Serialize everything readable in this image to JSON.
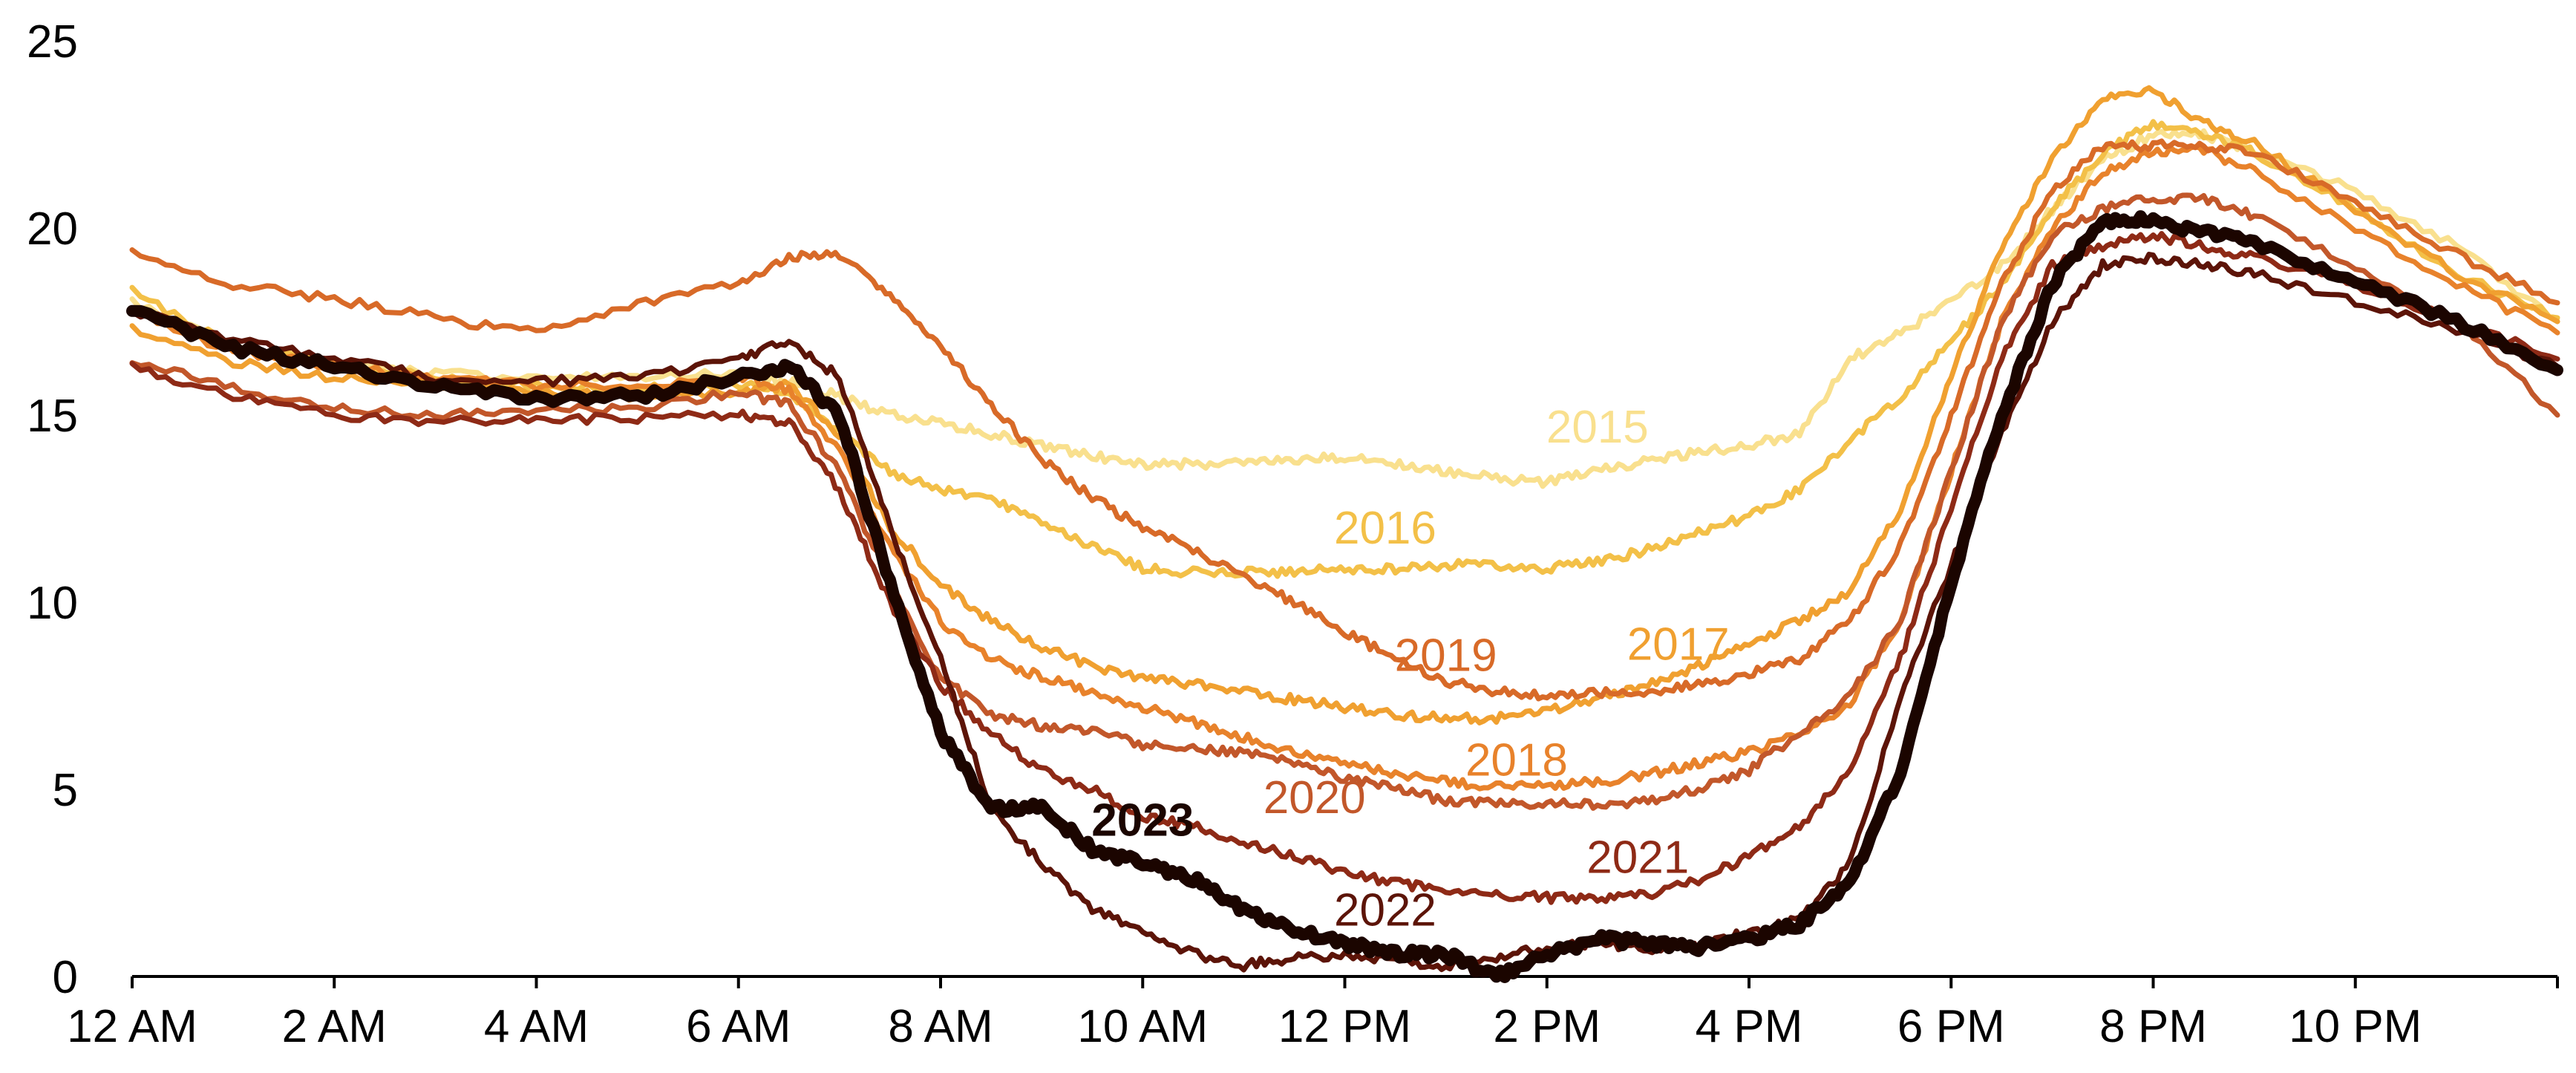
{
  "chart_data": {
    "type": "line",
    "title": "",
    "xlabel": "",
    "ylabel": "",
    "xlim": [
      0,
      24
    ],
    "ylim": [
      0,
      25
    ],
    "grid": false,
    "legend": "none (series labeled inline)",
    "x_ticks": [
      {
        "value": 0,
        "label": "12 AM"
      },
      {
        "value": 2,
        "label": "2 AM"
      },
      {
        "value": 4,
        "label": "4 AM"
      },
      {
        "value": 6,
        "label": "6 AM"
      },
      {
        "value": 8,
        "label": "8 AM"
      },
      {
        "value": 10,
        "label": "10 AM"
      },
      {
        "value": 12,
        "label": "12 PM"
      },
      {
        "value": 14,
        "label": "2 PM"
      },
      {
        "value": 16,
        "label": "4 PM"
      },
      {
        "value": 18,
        "label": "6 PM"
      },
      {
        "value": 20,
        "label": "8 PM"
      },
      {
        "value": 22,
        "label": "10 PM"
      }
    ],
    "y_ticks": [
      {
        "value": 0,
        "label": "0"
      },
      {
        "value": 5,
        "label": "5"
      },
      {
        "value": 10,
        "label": "10"
      },
      {
        "value": 15,
        "label": "15"
      },
      {
        "value": 20,
        "label": "20"
      },
      {
        "value": 25,
        "label": "25"
      }
    ],
    "x": [
      0,
      1,
      2,
      3,
      4,
      5,
      6,
      6.5,
      7,
      7.5,
      8,
      8.5,
      9,
      9.5,
      10,
      10.5,
      11,
      11.5,
      12,
      12.5,
      13,
      13.5,
      14,
      14.5,
      15,
      15.5,
      16,
      16.5,
      17,
      17.5,
      18,
      18.5,
      19,
      19.5,
      20,
      20.5,
      21,
      22,
      23,
      24
    ],
    "series": [
      {
        "name": "2015",
        "color": "#f9e08e",
        "label_at": [
          14.5,
          14.7
        ],
        "bold": false,
        "values": [
          18.0,
          16.8,
          16.4,
          16.1,
          16.0,
          16.0,
          16.1,
          15.9,
          15.5,
          15.0,
          14.8,
          14.5,
          14.2,
          13.9,
          13.7,
          13.7,
          13.7,
          13.8,
          13.9,
          13.7,
          13.5,
          13.3,
          13.2,
          13.5,
          13.8,
          14.0,
          14.2,
          14.5,
          16.5,
          17.2,
          18.0,
          19.0,
          20.5,
          21.8,
          22.5,
          22.5,
          22.0,
          21.0,
          19.5,
          17.5
        ]
      },
      {
        "name": "2016",
        "color": "#f3c048",
        "label_at": [
          12.4,
          12.0
        ],
        "bold": false,
        "values": [
          18.3,
          16.8,
          16.4,
          16.0,
          15.8,
          15.7,
          15.8,
          15.6,
          14.5,
          13.5,
          13.0,
          12.7,
          12.2,
          11.5,
          10.9,
          10.8,
          10.8,
          10.8,
          10.9,
          10.9,
          11.0,
          11.0,
          10.9,
          11.1,
          11.4,
          11.9,
          12.3,
          13.0,
          14.3,
          15.5,
          17.0,
          18.5,
          20.5,
          22.0,
          22.8,
          22.5,
          22.0,
          20.5,
          18.8,
          17.6
        ]
      },
      {
        "name": "2017",
        "color": "#f0a030",
        "label_at": [
          15.3,
          8.9
        ],
        "bold": false,
        "values": [
          17.3,
          16.4,
          16.0,
          15.8,
          15.6,
          15.5,
          15.6,
          15.8,
          14.5,
          12.0,
          10.5,
          9.5,
          8.8,
          8.3,
          8.0,
          7.8,
          7.6,
          7.4,
          7.2,
          7.0,
          6.9,
          6.9,
          7.1,
          7.4,
          7.8,
          8.3,
          8.9,
          9.5,
          10.3,
          12.5,
          16.0,
          19.5,
          21.8,
          23.5,
          23.7,
          22.8,
          22.3,
          20.5,
          18.8,
          17.5
        ]
      },
      {
        "name": "2018",
        "color": "#e8822b",
        "label_at": [
          13.7,
          5.8
        ],
        "bold": false,
        "values": [
          17.8,
          16.7,
          16.3,
          16.0,
          15.8,
          15.8,
          16.0,
          15.7,
          14.0,
          11.5,
          9.5,
          8.5,
          8.0,
          7.6,
          7.2,
          6.8,
          6.4,
          6.0,
          5.7,
          5.4,
          5.2,
          5.1,
          5.1,
          5.2,
          5.4,
          5.7,
          6.0,
          6.5,
          7.3,
          9.5,
          13.5,
          17.5,
          20.0,
          21.5,
          22.0,
          22.1,
          21.5,
          20.0,
          18.5,
          17.2
        ]
      },
      {
        "name": "2019",
        "color": "#d86a28",
        "label_at": [
          13.0,
          8.6
        ],
        "bold": false,
        "values": [
          19.3,
          18.5,
          18.1,
          17.6,
          17.2,
          18.0,
          18.5,
          19.2,
          19.3,
          18.2,
          16.8,
          15.3,
          13.8,
          12.8,
          12.0,
          11.4,
          10.7,
          10.0,
          9.2,
          8.5,
          7.9,
          7.6,
          7.5,
          7.6,
          7.6,
          7.8,
          8.1,
          8.5,
          9.5,
          11.5,
          15.0,
          18.5,
          21.0,
          22.2,
          22.2,
          22.2,
          22.0,
          20.7,
          19.3,
          18.0
        ]
      },
      {
        "name": "2020",
        "color": "#c2572a",
        "label_at": [
          11.7,
          4.8
        ],
        "bold": false,
        "values": [
          16.5,
          15.7,
          15.2,
          15.0,
          15.1,
          15.2,
          15.6,
          15.3,
          13.5,
          10.5,
          8.0,
          7.0,
          6.7,
          6.6,
          6.2,
          6.1,
          6.0,
          5.7,
          5.3,
          5.0,
          4.7,
          4.6,
          4.6,
          4.6,
          4.7,
          5.0,
          5.5,
          6.5,
          7.5,
          9.5,
          13.5,
          17.5,
          19.8,
          20.5,
          20.8,
          20.8,
          20.3,
          19.0,
          17.5,
          15.0
        ]
      },
      {
        "name": "2021",
        "color": "#8e2a16",
        "label_at": [
          14.9,
          3.2
        ],
        "bold": false,
        "values": [
          16.3,
          15.5,
          15.0,
          14.8,
          14.9,
          14.9,
          15.0,
          14.8,
          13.0,
          10.0,
          7.8,
          6.5,
          5.5,
          5.0,
          4.3,
          4.0,
          3.6,
          3.2,
          2.8,
          2.5,
          2.3,
          2.2,
          2.1,
          2.1,
          2.2,
          2.6,
          3.2,
          4.0,
          5.5,
          8.5,
          12.5,
          16.5,
          19.0,
          19.5,
          19.8,
          19.5,
          19.2,
          18.5,
          17.5,
          16.5
        ]
      },
      {
        "name": "2022",
        "color": "#5c1408",
        "label_at": [
          12.4,
          1.8
        ],
        "bold": false,
        "values": [
          17.8,
          17.0,
          16.5,
          16.0,
          15.9,
          16.0,
          16.5,
          17.0,
          16.0,
          12.0,
          8.5,
          4.5,
          3.0,
          1.8,
          1.2,
          0.6,
          0.3,
          0.5,
          0.6,
          0.4,
          0.3,
          0.5,
          0.8,
          0.9,
          0.7,
          0.8,
          1.2,
          1.5,
          3.0,
          7.5,
          11.0,
          14.5,
          17.5,
          19.0,
          19.2,
          19.0,
          18.8,
          18.0,
          17.3,
          16.3
        ]
      },
      {
        "name": "2023",
        "color": "#1b0500",
        "label_at": [
          10.0,
          4.2
        ],
        "bold": true,
        "values": [
          17.8,
          16.8,
          16.3,
          15.8,
          15.4,
          15.5,
          16.0,
          16.3,
          15.0,
          10.5,
          6.5,
          4.5,
          4.5,
          3.4,
          3.0,
          2.6,
          1.8,
          1.2,
          0.9,
          0.6,
          0.6,
          0.0,
          0.6,
          1.0,
          0.9,
          0.8,
          1.0,
          1.4,
          2.5,
          5.5,
          10.5,
          15.0,
          18.5,
          20.2,
          20.2,
          19.9,
          19.6,
          18.6,
          17.5,
          16.2
        ]
      }
    ]
  }
}
